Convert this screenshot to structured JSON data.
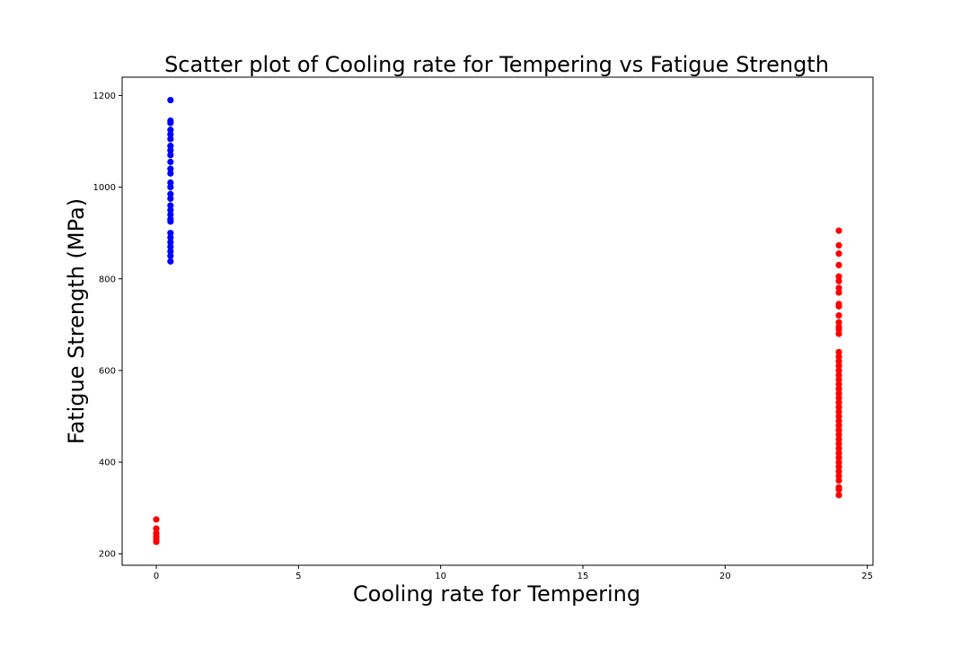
{
  "chart_data": {
    "type": "scatter",
    "title": "Scatter plot of Cooling rate for Tempering vs Fatigue Strength",
    "xlabel": "Cooling rate for Tempering",
    "ylabel": "Fatigue Strength (MPa)",
    "xlim": [
      -1.2,
      25.2
    ],
    "ylim": [
      175,
      1240
    ],
    "xticks": [
      0,
      5,
      10,
      15,
      20,
      25
    ],
    "yticks": [
      200,
      400,
      600,
      800,
      1000,
      1200
    ],
    "grid": false,
    "legend": "none",
    "colors": {
      "blue": "#0000ff",
      "red": "#ff0000"
    },
    "series": [
      {
        "color": "#0000ff",
        "points": [
          [
            0.5,
            1190
          ],
          [
            0.5,
            1145
          ],
          [
            0.5,
            1140
          ],
          [
            0.5,
            1125
          ],
          [
            0.5,
            1115
          ],
          [
            0.5,
            1105
          ],
          [
            0.5,
            1090
          ],
          [
            0.5,
            1080
          ],
          [
            0.5,
            1070
          ],
          [
            0.5,
            1055
          ],
          [
            0.5,
            1040
          ],
          [
            0.5,
            1030
          ],
          [
            0.5,
            1010
          ],
          [
            0.5,
            1000
          ],
          [
            0.5,
            985
          ],
          [
            0.5,
            975
          ],
          [
            0.5,
            960
          ],
          [
            0.5,
            950
          ],
          [
            0.5,
            940
          ],
          [
            0.5,
            930
          ],
          [
            0.5,
            925
          ],
          [
            0.5,
            900
          ],
          [
            0.5,
            890
          ],
          [
            0.5,
            880
          ],
          [
            0.5,
            870
          ],
          [
            0.5,
            860
          ],
          [
            0.5,
            850
          ],
          [
            0.5,
            838
          ]
        ]
      },
      {
        "color": "#ff0000",
        "points": [
          [
            0,
            275
          ],
          [
            0,
            255
          ],
          [
            0,
            245
          ],
          [
            0,
            238
          ],
          [
            0,
            232
          ],
          [
            0,
            226
          ],
          [
            24,
            905
          ],
          [
            24,
            873
          ],
          [
            24,
            855
          ],
          [
            24,
            830
          ],
          [
            24,
            805
          ],
          [
            24,
            795
          ],
          [
            24,
            780
          ],
          [
            24,
            770
          ],
          [
            24,
            745
          ],
          [
            24,
            740
          ],
          [
            24,
            720
          ],
          [
            24,
            705
          ],
          [
            24,
            695
          ],
          [
            24,
            690
          ],
          [
            24,
            680
          ],
          [
            24,
            640
          ],
          [
            24,
            630
          ],
          [
            24,
            620
          ],
          [
            24,
            610
          ],
          [
            24,
            600
          ],
          [
            24,
            590
          ],
          [
            24,
            580
          ],
          [
            24,
            570
          ],
          [
            24,
            560
          ],
          [
            24,
            550
          ],
          [
            24,
            540
          ],
          [
            24,
            530
          ],
          [
            24,
            520
          ],
          [
            24,
            510
          ],
          [
            24,
            500
          ],
          [
            24,
            490
          ],
          [
            24,
            480
          ],
          [
            24,
            470
          ],
          [
            24,
            460
          ],
          [
            24,
            450
          ],
          [
            24,
            440
          ],
          [
            24,
            430
          ],
          [
            24,
            420
          ],
          [
            24,
            410
          ],
          [
            24,
            400
          ],
          [
            24,
            390
          ],
          [
            24,
            380
          ],
          [
            24,
            370
          ],
          [
            24,
            360
          ],
          [
            24,
            345
          ],
          [
            24,
            340
          ],
          [
            24,
            328
          ]
        ]
      }
    ]
  }
}
